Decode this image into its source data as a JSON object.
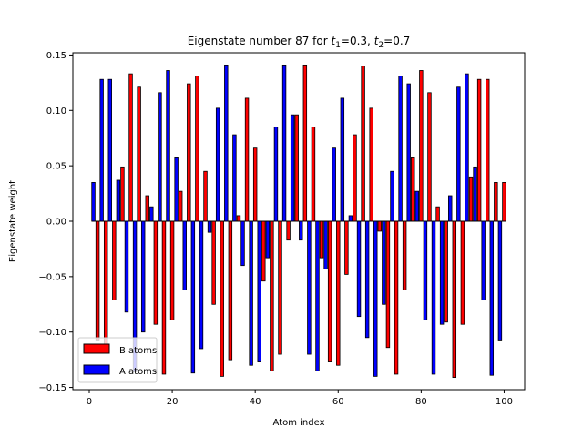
{
  "chart_data": {
    "type": "bar",
    "title_prefix": "Eigenstate number 87 for ",
    "title_t1_value": "=0.3, ",
    "title_t2_value": "=0.7",
    "title_symbol": "t",
    "title_sub1": "1",
    "title_sub2": "2",
    "xlabel": "Atom index",
    "ylabel": "Eigenstate weight",
    "xlim": [
      -3.95,
      104.95
    ],
    "ylim": [
      -0.152,
      0.152
    ],
    "xticks": [
      0,
      20,
      40,
      60,
      80,
      100
    ],
    "yticks": [
      -0.15,
      -0.1,
      -0.05,
      0.0,
      0.05,
      0.1,
      0.15
    ],
    "ytick_labels": [
      "−0.15",
      "−0.10",
      "−0.05",
      "0.00",
      "0.05",
      "0.10",
      "0.15"
    ],
    "bar_width": 0.8,
    "legend_position": "lower-left",
    "grid": false,
    "series": [
      {
        "name": "B atoms",
        "color": "#ff0000",
        "x": [
          2,
          4,
          6,
          8,
          10,
          12,
          14,
          16,
          18,
          20,
          22,
          24,
          26,
          28,
          30,
          32,
          34,
          36,
          38,
          40,
          42,
          44,
          46,
          48,
          50,
          52,
          54,
          56,
          58,
          60,
          62,
          64,
          66,
          68,
          70,
          72,
          74,
          76,
          78,
          80,
          82,
          84,
          86,
          88,
          90,
          92,
          94,
          96,
          98,
          100
        ],
        "values": [
          -0.108,
          -0.112,
          -0.071,
          0.049,
          0.133,
          0.121,
          0.023,
          -0.093,
          -0.138,
          -0.089,
          0.027,
          0.124,
          0.131,
          0.045,
          -0.075,
          -0.14,
          -0.125,
          0.005,
          0.111,
          0.066,
          -0.054,
          -0.135,
          -0.12,
          -0.017,
          0.096,
          0.141,
          0.085,
          -0.033,
          -0.127,
          -0.13,
          -0.048,
          0.078,
          0.14,
          0.102,
          -0.009,
          -0.114,
          -0.138,
          -0.062,
          0.058,
          0.136,
          0.116,
          0.013,
          -0.091,
          -0.141,
          -0.093,
          0.04,
          0.128,
          0.128,
          0.035,
          0.035
        ]
      },
      {
        "name": "A atoms",
        "color": "#0000ff",
        "x": [
          1,
          3,
          5,
          7,
          9,
          11,
          13,
          15,
          17,
          19,
          21,
          23,
          25,
          27,
          29,
          31,
          33,
          35,
          37,
          39,
          41,
          43,
          45,
          47,
          49,
          51,
          53,
          55,
          57,
          59,
          61,
          63,
          65,
          67,
          69,
          71,
          73,
          75,
          77,
          79,
          81,
          83,
          85,
          87,
          89,
          91,
          93,
          95,
          97,
          99
        ],
        "values": [
          0.035,
          0.128,
          0.128,
          0.037,
          -0.082,
          -0.136,
          -0.1,
          0.013,
          0.116,
          0.136,
          0.058,
          -0.062,
          -0.137,
          -0.115,
          -0.01,
          0.102,
          0.141,
          0.078,
          -0.04,
          -0.13,
          -0.127,
          -0.033,
          0.085,
          0.141,
          0.096,
          -0.017,
          -0.12,
          -0.135,
          -0.043,
          0.066,
          0.111,
          0.005,
          -0.086,
          -0.105,
          -0.14,
          -0.075,
          0.045,
          0.131,
          0.124,
          0.027,
          -0.089,
          -0.138,
          -0.093,
          0.023,
          0.121,
          0.133,
          0.049,
          -0.071,
          -0.139,
          -0.108
        ]
      }
    ]
  }
}
